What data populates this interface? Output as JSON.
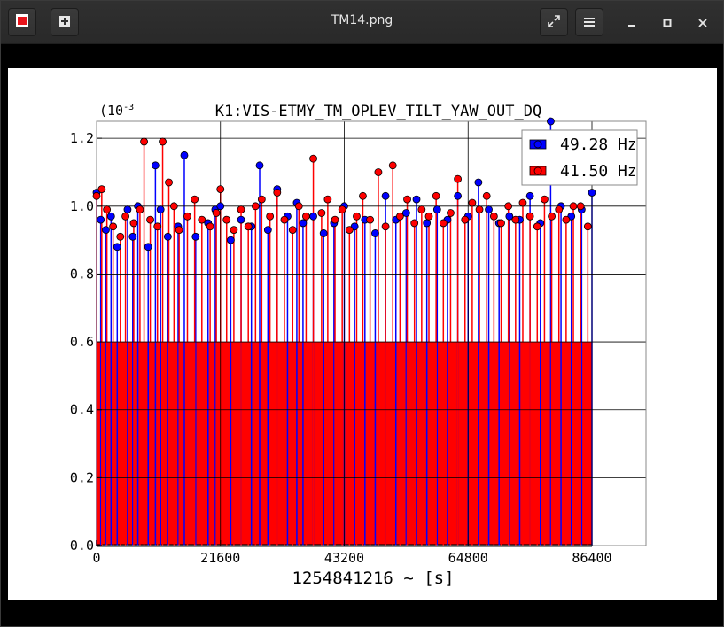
{
  "window": {
    "title": "TM14.png",
    "icons": {
      "app": "app-icon",
      "new_tab": "new-tab-icon",
      "fullscreen": "fullscreen-icon",
      "menu": "hamburger-menu-icon",
      "minimize": "minimize-icon",
      "maximize": "maximize-icon",
      "close": "close-icon"
    }
  },
  "colors": {
    "accent": "#e8141b",
    "series_blue": "#0000ff",
    "series_red": "#ff0000"
  },
  "chart_data": {
    "type": "scatter",
    "style": "stem",
    "title": "K1:VIS-ETMY_TM_OPLEV_TILT_YAW_OUT_DQ",
    "xlabel": "1254841216 ~ [s]",
    "ylabel": "",
    "y_exponent": "(10",
    "y_exponent_sup": "-3",
    "xlim": [
      0,
      86400
    ],
    "ylim": [
      0,
      1.25
    ],
    "xticks": [
      0,
      21600,
      43200,
      64800,
      86400
    ],
    "xtick_labels": [
      "0",
      "21600",
      "43200",
      "64800",
      "86400"
    ],
    "yticks": [
      0,
      0.2,
      0.4,
      0.6,
      0.8,
      1.0,
      1.2
    ],
    "ytick_labels": [
      "0.0",
      "0.2",
      "0.4",
      "0.6",
      "0.8",
      "1.0",
      "1.2"
    ],
    "grid": true,
    "legend_position": "top-right",
    "series": [
      {
        "name": "49.28 Hz",
        "color": "#0000ff",
        "x": [
          0,
          720,
          1620,
          2520,
          3600,
          5400,
          6300,
          7200,
          9000,
          10260,
          11160,
          12420,
          14220,
          15300,
          17280,
          19440,
          20700,
          21600,
          23400,
          25200,
          27000,
          28440,
          29880,
          31500,
          33300,
          34920,
          36000,
          37800,
          39600,
          41400,
          43200,
          45000,
          46800,
          48600,
          50400,
          52200,
          54000,
          55800,
          57600,
          59400,
          61200,
          63000,
          64800,
          66600,
          68400,
          70200,
          72000,
          73800,
          75600,
          77400,
          79200,
          81000,
          82800,
          84600,
          86400
        ],
        "y": [
          1.04,
          0.96,
          0.93,
          0.97,
          0.88,
          0.99,
          0.91,
          1.0,
          0.88,
          1.12,
          0.99,
          0.91,
          0.94,
          1.15,
          0.91,
          0.95,
          0.99,
          1.0,
          0.9,
          0.96,
          0.94,
          1.12,
          0.93,
          1.05,
          0.97,
          1.01,
          0.95,
          0.97,
          0.92,
          0.95,
          1.0,
          0.94,
          0.96,
          0.92,
          1.03,
          0.96,
          0.98,
          1.02,
          0.95,
          0.99,
          0.96,
          1.03,
          0.97,
          1.07,
          0.99,
          0.95,
          0.97,
          0.96,
          1.03,
          0.95,
          1.25,
          1.0,
          0.97,
          0.99,
          1.04
        ]
      },
      {
        "name": "41.50 Hz",
        "color": "#ff0000",
        "x": [
          0,
          900,
          1800,
          2880,
          4140,
          5040,
          6480,
          7560,
          8280,
          9360,
          10620,
          11520,
          12600,
          13500,
          14400,
          15840,
          17100,
          18360,
          19800,
          20880,
          21600,
          22680,
          23940,
          25200,
          26460,
          27720,
          28800,
          30240,
          31500,
          32760,
          34200,
          35280,
          36540,
          37800,
          39240,
          40320,
          41580,
          42840,
          44100,
          45360,
          46440,
          47700,
          49140,
          50400,
          51660,
          52920,
          54180,
          55440,
          56700,
          57960,
          59220,
          60480,
          61740,
          63000,
          64260,
          65520,
          66780,
          68040,
          69300,
          70560,
          71820,
          73080,
          74340,
          75600,
          76860,
          78120,
          79380,
          80640,
          81900,
          83160,
          84420,
          85680
        ],
        "y": [
          1.03,
          1.05,
          0.99,
          0.94,
          0.91,
          0.97,
          0.95,
          0.99,
          1.19,
          0.96,
          0.94,
          1.19,
          1.07,
          1.0,
          0.93,
          0.97,
          1.02,
          0.96,
          0.94,
          0.98,
          1.05,
          0.96,
          0.93,
          0.99,
          0.94,
          1.0,
          1.02,
          0.97,
          1.04,
          0.96,
          0.93,
          1.0,
          0.97,
          1.14,
          0.98,
          1.02,
          0.96,
          0.99,
          0.93,
          0.97,
          1.03,
          0.96,
          1.1,
          0.94,
          1.12,
          0.97,
          1.02,
          0.95,
          0.99,
          0.97,
          1.03,
          0.95,
          0.98,
          1.08,
          0.96,
          1.01,
          0.99,
          1.03,
          0.97,
          0.95,
          1.0,
          0.96,
          1.01,
          0.97,
          0.94,
          1.02,
          0.97,
          0.99,
          0.96,
          1.0,
          1.0,
          0.94
        ]
      }
    ]
  }
}
